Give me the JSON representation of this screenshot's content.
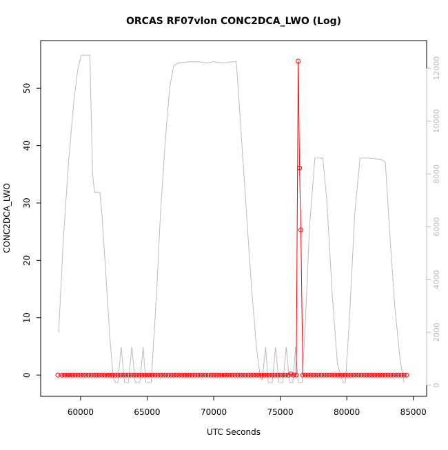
{
  "chart_data": {
    "type": "line",
    "title": "ORCAS RF07vlon CONC2DCA_LWO (Log)",
    "xlabel": "UTC Seconds",
    "ylabel": "CONC2DCA_LWO",
    "xlim": [
      57000,
      86000
    ],
    "ylim": [
      -3.7,
      58.3
    ],
    "ylim_right": [
      -420,
      13050
    ],
    "x_ticks": [
      60000,
      65000,
      70000,
      75000,
      80000,
      85000
    ],
    "y_ticks": [
      0,
      10,
      20,
      30,
      40,
      50
    ],
    "y_ticks_right": [
      0,
      2000,
      4000,
      6000,
      8000,
      10000,
      12000
    ],
    "grid": false,
    "series": [
      {
        "axis": "left",
        "color": "#ff0000",
        "marker": "open-circle",
        "points": [
          [
            58300,
            0
          ],
          [
            58600,
            0
          ],
          [
            58800,
            0
          ],
          [
            59000,
            0
          ],
          [
            59200,
            0
          ],
          [
            59400,
            0
          ],
          [
            59600,
            0
          ],
          [
            59800,
            0
          ],
          [
            60000,
            0
          ],
          [
            60200,
            0
          ],
          [
            60400,
            0
          ],
          [
            60600,
            0
          ],
          [
            60800,
            0
          ],
          [
            61000,
            0
          ],
          [
            61200,
            0
          ],
          [
            61400,
            0
          ],
          [
            61600,
            0
          ],
          [
            61800,
            0
          ],
          [
            62000,
            0
          ],
          [
            62200,
            0
          ],
          [
            62400,
            0
          ],
          [
            62600,
            0
          ],
          [
            62800,
            0
          ],
          [
            63000,
            0
          ],
          [
            63200,
            0
          ],
          [
            63400,
            0
          ],
          [
            63600,
            0
          ],
          [
            63800,
            0
          ],
          [
            64000,
            0
          ],
          [
            64200,
            0
          ],
          [
            64400,
            0
          ],
          [
            64600,
            0
          ],
          [
            64800,
            0
          ],
          [
            65000,
            0
          ],
          [
            65200,
            0
          ],
          [
            65400,
            0
          ],
          [
            65600,
            0
          ],
          [
            65800,
            0
          ],
          [
            66000,
            0
          ],
          [
            66200,
            0
          ],
          [
            66400,
            0
          ],
          [
            66600,
            0
          ],
          [
            66800,
            0
          ],
          [
            67000,
            0
          ],
          [
            67200,
            0
          ],
          [
            67400,
            0
          ],
          [
            67600,
            0
          ],
          [
            67800,
            0
          ],
          [
            68000,
            0
          ],
          [
            68200,
            0
          ],
          [
            68400,
            0
          ],
          [
            68600,
            0
          ],
          [
            68800,
            0
          ],
          [
            69000,
            0
          ],
          [
            69200,
            0
          ],
          [
            69400,
            0
          ],
          [
            69600,
            0
          ],
          [
            69800,
            0
          ],
          [
            70000,
            0
          ],
          [
            70200,
            0
          ],
          [
            70400,
            0
          ],
          [
            70600,
            0
          ],
          [
            70800,
            0
          ],
          [
            71000,
            0
          ],
          [
            71200,
            0
          ],
          [
            71400,
            0
          ],
          [
            71600,
            0
          ],
          [
            71800,
            0
          ],
          [
            72000,
            0
          ],
          [
            72200,
            0
          ],
          [
            72400,
            0
          ],
          [
            72600,
            0
          ],
          [
            72800,
            0
          ],
          [
            73000,
            0
          ],
          [
            73200,
            0
          ],
          [
            73400,
            0
          ],
          [
            73600,
            0
          ],
          [
            73800,
            0
          ],
          [
            74000,
            0
          ],
          [
            74200,
            0
          ],
          [
            74400,
            0
          ],
          [
            74600,
            0
          ],
          [
            74800,
            0
          ],
          [
            75000,
            0
          ],
          [
            75200,
            0
          ],
          [
            75400,
            0
          ],
          [
            75600,
            0
          ],
          [
            75800,
            0.2
          ],
          [
            76000,
            0
          ],
          [
            76200,
            0
          ],
          [
            76350,
            54.7
          ],
          [
            76450,
            36.1
          ],
          [
            76550,
            25.3
          ],
          [
            76700,
            0
          ],
          [
            76900,
            0
          ],
          [
            77100,
            0
          ],
          [
            77300,
            0
          ],
          [
            77500,
            0
          ],
          [
            77700,
            0
          ],
          [
            77900,
            0
          ],
          [
            78100,
            0
          ],
          [
            78300,
            0
          ],
          [
            78500,
            0
          ],
          [
            78700,
            0
          ],
          [
            78900,
            0
          ],
          [
            79100,
            0
          ],
          [
            79300,
            0
          ],
          [
            79500,
            0
          ],
          [
            79700,
            0
          ],
          [
            79900,
            0
          ],
          [
            80100,
            0
          ],
          [
            80300,
            0
          ],
          [
            80500,
            0
          ],
          [
            80700,
            0
          ],
          [
            80900,
            0
          ],
          [
            81100,
            0
          ],
          [
            81300,
            0
          ],
          [
            81500,
            0
          ],
          [
            81700,
            0
          ],
          [
            81900,
            0
          ],
          [
            82100,
            0
          ],
          [
            82300,
            0
          ],
          [
            82500,
            0
          ],
          [
            82700,
            0
          ],
          [
            82900,
            0
          ],
          [
            83100,
            0
          ],
          [
            83300,
            0
          ],
          [
            83500,
            0
          ],
          [
            83700,
            0
          ],
          [
            83900,
            0
          ],
          [
            84100,
            0
          ],
          [
            84300,
            0
          ],
          [
            84500,
            0
          ]
        ]
      },
      {
        "axis": "right",
        "color": "#bbbbbb",
        "marker": "none",
        "points": [
          [
            58350,
            2000
          ],
          [
            58700,
            5500
          ],
          [
            59100,
            8500
          ],
          [
            59500,
            10800
          ],
          [
            59800,
            12000
          ],
          [
            60050,
            12500
          ],
          [
            60250,
            12500
          ],
          [
            60700,
            12500
          ],
          [
            60900,
            8000
          ],
          [
            61050,
            7300
          ],
          [
            61450,
            7300
          ],
          [
            61600,
            6500
          ],
          [
            61900,
            4200
          ],
          [
            62200,
            1800
          ],
          [
            62450,
            300
          ],
          [
            62600,
            100
          ],
          [
            62800,
            100
          ],
          [
            63050,
            1450
          ],
          [
            63300,
            100
          ],
          [
            63600,
            100
          ],
          [
            63850,
            1450
          ],
          [
            64100,
            100
          ],
          [
            64450,
            100
          ],
          [
            64700,
            1450
          ],
          [
            64900,
            100
          ],
          [
            65300,
            100
          ],
          [
            65700,
            3400
          ],
          [
            66000,
            6500
          ],
          [
            66400,
            9500
          ],
          [
            66700,
            11300
          ],
          [
            67000,
            12100
          ],
          [
            67300,
            12200
          ],
          [
            68200,
            12250
          ],
          [
            68900,
            12250
          ],
          [
            69500,
            12200
          ],
          [
            70000,
            12250
          ],
          [
            70800,
            12200
          ],
          [
            71300,
            12250
          ],
          [
            71700,
            12250
          ],
          [
            72000,
            10000
          ],
          [
            72400,
            7000
          ],
          [
            72800,
            4000
          ],
          [
            73200,
            1500
          ],
          [
            73500,
            300
          ],
          [
            73650,
            200
          ],
          [
            73900,
            1450
          ],
          [
            74100,
            100
          ],
          [
            74400,
            100
          ],
          [
            74650,
            1450
          ],
          [
            74900,
            100
          ],
          [
            75200,
            100
          ],
          [
            75450,
            1450
          ],
          [
            75700,
            100
          ],
          [
            75950,
            100
          ],
          [
            76150,
            1450
          ],
          [
            76350,
            100
          ],
          [
            76650,
            100
          ],
          [
            76900,
            2500
          ],
          [
            77200,
            6000
          ],
          [
            77600,
            8600
          ],
          [
            78200,
            8600
          ],
          [
            78500,
            7000
          ],
          [
            78900,
            3500
          ],
          [
            79300,
            800
          ],
          [
            79700,
            100
          ],
          [
            79900,
            100
          ],
          [
            80200,
            2500
          ],
          [
            80600,
            6500
          ],
          [
            81000,
            8600
          ],
          [
            81600,
            8600
          ],
          [
            82600,
            8550
          ],
          [
            82900,
            8450
          ],
          [
            83200,
            6000
          ],
          [
            83600,
            3000
          ],
          [
            84000,
            1000
          ],
          [
            84300,
            100
          ]
        ]
      }
    ]
  }
}
